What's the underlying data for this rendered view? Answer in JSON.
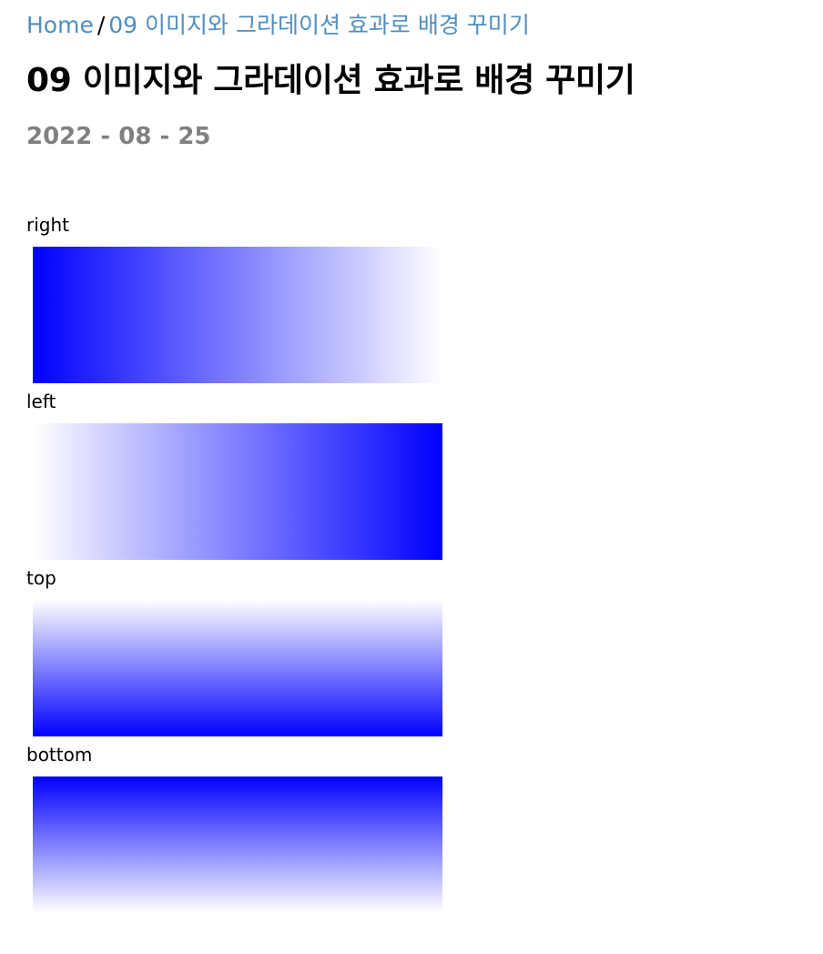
{
  "breadcrumb": {
    "home_label": "Home",
    "separator": "/",
    "current_label": "09 이미지와 그라데이션 효과로 배경 꾸미기"
  },
  "post": {
    "title": "09 이미지와 그라데이션 효과로 배경 꾸미기",
    "date": "2022 - 08 - 25"
  },
  "gradient_demos": [
    {
      "label": "right",
      "direction": "to right",
      "from_color": "#0000ff",
      "to_color": "#ffffff"
    },
    {
      "label": "left",
      "direction": "to left",
      "from_color": "#0000ff",
      "to_color": "#ffffff"
    },
    {
      "label": "top",
      "direction": "to top",
      "from_color": "#0000ff",
      "to_color": "#ffffff"
    },
    {
      "label": "bottom",
      "direction": "to bottom",
      "from_color": "#0000ff",
      "to_color": "#ffffff"
    }
  ],
  "colors": {
    "link": "#4f8fc0",
    "date": "#808080"
  }
}
